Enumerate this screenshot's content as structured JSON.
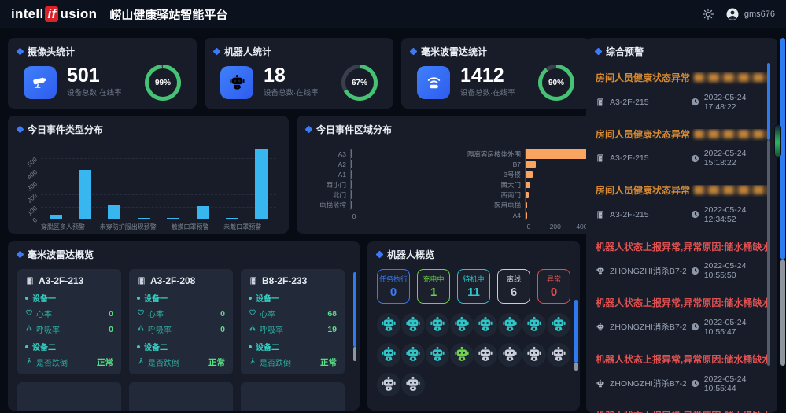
{
  "header": {
    "logo": {
      "pre": "intell",
      "mid": "if",
      "post": "usion"
    },
    "title": "崂山健康驿站智能平台",
    "username": "gms676"
  },
  "stats": [
    {
      "title": "摄像头统计",
      "value": "501",
      "caption": "设备总数·在线率",
      "percent": 99,
      "percent_label": "99%",
      "icon": "camera-icon"
    },
    {
      "title": "机器人统计",
      "value": "18",
      "caption": "设备总数·在线率",
      "percent": 67,
      "percent_label": "67%",
      "icon": "robot-icon"
    },
    {
      "title": "毫米波雷达统计",
      "value": "1412",
      "caption": "设备总数·在线率",
      "percent": 90,
      "percent_label": "90%",
      "icon": "radar-icon"
    }
  ],
  "chart_data": [
    {
      "type": "bar",
      "title": "今日事件类型分布",
      "categories": [
        "穿脱区多人预警",
        "",
        "未穿防护服出现预警",
        "",
        "触摸口罩预警",
        "",
        "未戴口罩预警",
        ""
      ],
      "values": [
        40,
        410,
        120,
        15,
        10,
        110,
        12,
        580
      ],
      "ylim": [
        0,
        600
      ],
      "yticks": [
        0,
        100,
        200,
        300,
        400,
        500
      ],
      "bar_color": "#38b6f0",
      "grid": true,
      "xlabel": "",
      "ylabel": ""
    },
    {
      "type": "bar-horizontal",
      "title": "今日事件区域分布",
      "groups": [
        {
          "categories": [
            "A3",
            "A2",
            "A1",
            "西小门",
            "北门",
            "电梯监控"
          ],
          "values": [
            2,
            2,
            2,
            2,
            2,
            3
          ],
          "xlim": [
            0,
            700
          ],
          "xticks": [
            0
          ],
          "bar_color": "#c0504a"
        },
        {
          "categories": [
            "隔离客房楼体外围",
            "B7",
            "3号楼",
            "西大门",
            "西南门",
            "医用电梯",
            "A4"
          ],
          "values": [
            680,
            75,
            55,
            35,
            22,
            12,
            4
          ],
          "xlim": [
            0,
            700
          ],
          "xticks": [
            0,
            200,
            400,
            600
          ],
          "bar_color": "#f9a460"
        }
      ]
    }
  ],
  "radar_panel": {
    "title": "毫米波雷达概览",
    "cards": [
      {
        "room": "A3-2F-213",
        "device1_label": "设备一",
        "heart_label": "心率",
        "heart": "0",
        "breath_label": "呼吸率",
        "breath": "0",
        "device2_label": "设备二",
        "fall_label": "是否跌倒",
        "fall": "正常"
      },
      {
        "room": "A3-2F-208",
        "device1_label": "设备一",
        "heart_label": "心率",
        "heart": "0",
        "breath_label": "呼吸率",
        "breath": "0",
        "device2_label": "设备二",
        "fall_label": "是否跌倒",
        "fall": "正常"
      },
      {
        "room": "B8-2F-233",
        "device1_label": "设备一",
        "heart_label": "心率",
        "heart": "68",
        "breath_label": "呼吸率",
        "breath": "19",
        "device2_label": "设备二",
        "fall_label": "是否跌倒",
        "fall": "正常"
      }
    ]
  },
  "robot_panel": {
    "title": "机器人概览",
    "statuses": [
      {
        "key": "task",
        "label": "任务执行",
        "count": "0",
        "color": "#3d7bf5"
      },
      {
        "key": "charging",
        "label": "充电中",
        "count": "1",
        "color": "#6fd34f"
      },
      {
        "key": "standby",
        "label": "待机中",
        "count": "11",
        "color": "#2fc6c8"
      },
      {
        "key": "offline",
        "label": "离线",
        "count": "6",
        "color": "#c9ced8"
      },
      {
        "key": "error",
        "label": "异常",
        "count": "0",
        "color": "#e25050"
      }
    ],
    "robots": [
      "standby",
      "standby",
      "standby",
      "standby",
      "standby",
      "standby",
      "standby",
      "standby",
      "standby",
      "standby",
      "standby",
      "charging",
      "offline",
      "offline",
      "offline",
      "offline",
      "offline",
      "offline"
    ]
  },
  "alerts_panel": {
    "title": "综合预警",
    "items": [
      {
        "severity": "warning",
        "title": "房间人员健康状态异常",
        "redacted": true,
        "location_icon": "door-icon",
        "location": "A3-2F-215",
        "time": "2022-05-24 17:48:22"
      },
      {
        "severity": "warning",
        "title": "房间人员健康状态异常",
        "redacted": true,
        "location_icon": "door-icon",
        "location": "A3-2F-215",
        "time": "2022-05-24 15:18:22"
      },
      {
        "severity": "warning",
        "title": "房间人员健康状态异常",
        "redacted": true,
        "location_icon": "door-icon",
        "location": "A3-2F-215",
        "time": "2022-05-24 12:34:52"
      },
      {
        "severity": "error",
        "title": "机器人状态上报异常,异常原因:储水桶缺水",
        "redacted": false,
        "location_icon": "robot-head-icon",
        "location": "ZHONGZHI消杀B7-2F",
        "time": "2022-05-24 10:55:50"
      },
      {
        "severity": "error",
        "title": "机器人状态上报异常,异常原因:储水桶缺水",
        "redacted": false,
        "location_icon": "robot-head-icon",
        "location": "ZHONGZHI消杀B7-2F",
        "time": "2022-05-24 10:55:47"
      },
      {
        "severity": "error",
        "title": "机器人状态上报异常,异常原因:储水桶缺水",
        "redacted": false,
        "location_icon": "robot-head-icon",
        "location": "ZHONGZHI消杀B7-2F",
        "time": "2022-05-24 10:55:44"
      },
      {
        "severity": "error",
        "title": "机器人状态上报异常,异常原因:储水桶缺水",
        "partial": true
      }
    ]
  }
}
